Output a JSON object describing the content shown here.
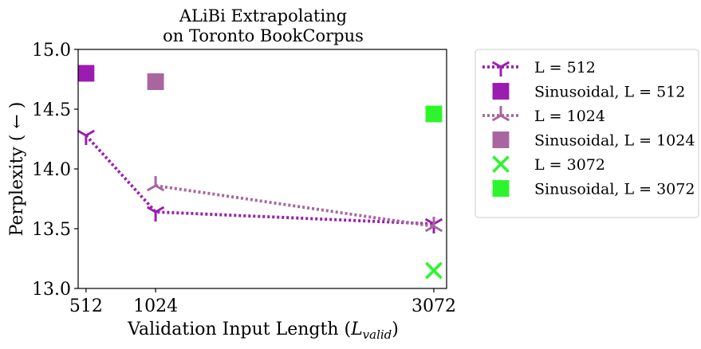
{
  "chart_data": {
    "type": "line",
    "title": "ALiBi Extrapolating",
    "subtitle": "on Toronto BookCorpus",
    "xlabel": "Validation Input Length (",
    "xlabel_var": "L",
    "xlabel_sub": "valid",
    "xlabel_end": ")",
    "ylabel": "Perplexity ( ← )",
    "xlim": [
      454,
      3166
    ],
    "ylim": [
      13.0,
      15.0
    ],
    "x_ticks": [
      512,
      1024,
      3072
    ],
    "x_tick_labels": [
      "512",
      "1024",
      "3072"
    ],
    "y_ticks": [
      13.0,
      13.5,
      14.0,
      14.5,
      15.0
    ],
    "y_tick_labels": [
      "13.0",
      "13.5",
      "14.0",
      "14.5",
      "15.0"
    ],
    "grid": false,
    "legend_position": "outside-right",
    "series": [
      {
        "name": "L = 512",
        "kind": "line",
        "marker": "tri_down",
        "color": "#9b1cb1",
        "x": [
          512,
          1024,
          3072
        ],
        "y": [
          14.28,
          13.64,
          13.54
        ]
      },
      {
        "name": "Sinusoidal, L = 512",
        "kind": "point",
        "marker": "square",
        "color": "#9b1cb1",
        "x": [
          512
        ],
        "y": [
          14.8
        ]
      },
      {
        "name": "L = 1024",
        "kind": "line",
        "marker": "tri_up",
        "color": "#a865a0",
        "x": [
          1024,
          3072
        ],
        "y": [
          13.86,
          13.52
        ]
      },
      {
        "name": "Sinusoidal, L = 1024",
        "kind": "point",
        "marker": "square",
        "color": "#a865a0",
        "x": [
          1024
        ],
        "y": [
          14.73
        ]
      },
      {
        "name": "L = 3072",
        "kind": "point",
        "marker": "x",
        "color": "#2cf52c",
        "x": [
          3072
        ],
        "y": [
          13.15
        ]
      },
      {
        "name": "Sinusoidal, L = 3072",
        "kind": "point",
        "marker": "square",
        "color": "#2cf52c",
        "x": [
          3072
        ],
        "y": [
          14.46
        ]
      }
    ]
  }
}
